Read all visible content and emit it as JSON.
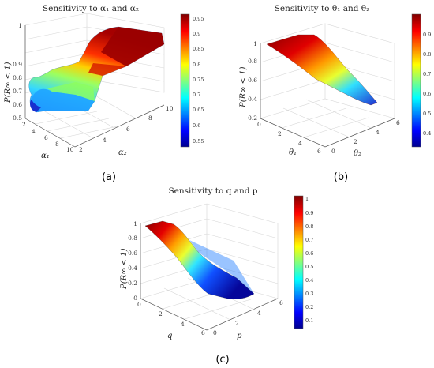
{
  "chart_data": [
    {
      "type": "surface3d",
      "panel_label": "(a)",
      "title": "Sensitivity to α₁ and α₂",
      "x_label": "α₁",
      "y_label": "α₂",
      "z_label": "P(R∞ < 1)",
      "x_ticks": [
        "2",
        "4",
        "6",
        "8",
        "10"
      ],
      "y_ticks": [
        "2",
        "4",
        "6",
        "8",
        "10"
      ],
      "z_ticks": [
        "0.5",
        "0.6",
        "0.7",
        "0.8",
        "0.9",
        "1"
      ],
      "zlim": [
        0.5,
        1.0
      ],
      "colorbar_ticks": [
        "0.55",
        "0.6",
        "0.65",
        "0.7",
        "0.75",
        "0.8",
        "0.85",
        "0.9",
        "0.95"
      ],
      "colorbar_range": [
        0.52,
        0.99
      ],
      "description_values": {
        "min": 0.52,
        "max": 0.99
      }
    },
    {
      "type": "surface3d",
      "panel_label": "(b)",
      "title": "Sensitivity to θ₁ and θ₂",
      "x_label": "θ₁",
      "y_label": "θ₂",
      "z_label": "P(R∞ < 1)",
      "x_ticks": [
        "0",
        "2",
        "4",
        "6"
      ],
      "y_ticks": [
        "0",
        "2",
        "4",
        "6"
      ],
      "z_ticks": [
        "0.2",
        "0.4",
        "0.6",
        "0.8",
        "1"
      ],
      "zlim": [
        0.2,
        1.0
      ],
      "colorbar_ticks": [
        "0.4",
        "0.5",
        "0.6",
        "0.7",
        "0.8",
        "0.9"
      ],
      "colorbar_range": [
        0.33,
        1.0
      ]
    },
    {
      "type": "surface3d",
      "panel_label": "(c)",
      "title": "Sensitivity to q and p",
      "x_label": "q",
      "y_label": "p",
      "z_label": "P(R∞ < 1)",
      "x_ticks": [
        "0",
        "2",
        "4",
        "6"
      ],
      "y_ticks": [
        "0",
        "2",
        "4",
        "6"
      ],
      "z_ticks": [
        "0",
        "0.2",
        "0.4",
        "0.6",
        "0.8",
        "1"
      ],
      "zlim": [
        0,
        1.0
      ],
      "colorbar_ticks": [
        "0.1",
        "0.2",
        "0.3",
        "0.4",
        "0.5",
        "0.6",
        "0.7",
        "0.8",
        "0.9",
        "1"
      ],
      "colorbar_range": [
        0.02,
        1.0
      ]
    }
  ]
}
